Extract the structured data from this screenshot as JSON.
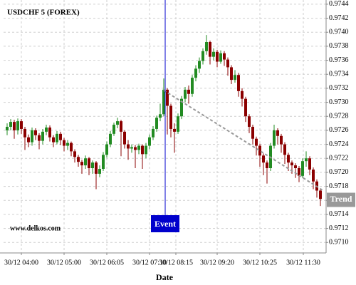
{
  "chart_data": {
    "type": "candlestick",
    "title": "USDCHF 5 (FOREX)",
    "watermark": "www.delkos.com",
    "x_label": "Date",
    "up_color": "#228b22",
    "down_color": "#8b0000",
    "grid": true,
    "xlim": [
      -1,
      89.6
    ],
    "ylim": [
      0.97085,
      0.97446
    ],
    "xticks": [
      {
        "value": 4,
        "label": "30/12 04:00"
      },
      {
        "value": 16,
        "label": "30/12 05:00"
      },
      {
        "value": 28,
        "label": "30/12 06:05"
      },
      {
        "value": 40,
        "label": "30/12 07:10"
      },
      {
        "value": 47.4,
        "label": "30/12 08:15"
      },
      {
        "value": 59,
        "label": "30/12 09:20"
      },
      {
        "value": 71,
        "label": "30/12 10:25"
      },
      {
        "value": 83.2,
        "label": "30/12 11:30"
      }
    ],
    "yticks": [
      {
        "value": 0.971,
        "label": "0.9710"
      },
      0.9712,
      0.9714,
      0.9716,
      0.9718,
      {
        "value": 0.972,
        "label": "0.9720"
      },
      0.9722,
      0.9724,
      0.9726,
      0.9728,
      {
        "value": 0.973,
        "label": "0.9730"
      },
      0.9732,
      0.9734,
      0.9736,
      0.9738,
      {
        "value": 0.974,
        "label": "0.9740"
      },
      0.9742,
      0.9744
    ],
    "open": [
      0.9726,
      0.97265,
      0.97272,
      0.9726,
      0.97273,
      0.97262,
      0.9725,
      0.97243,
      0.9726,
      0.97253,
      0.97245,
      0.97258,
      0.97264,
      0.9725,
      0.97243,
      0.97255,
      0.97246,
      0.97238,
      0.97242,
      0.9723,
      0.97222,
      0.97215,
      0.9721,
      0.9722,
      0.97206,
      0.97214,
      0.97198,
      0.97205,
      0.97225,
      0.9724,
      0.97255,
      0.97268,
      0.97273,
      0.97258,
      0.9724,
      0.97234,
      0.97236,
      0.97232,
      0.97238,
      0.97226,
      0.97238,
      0.9725,
      0.97262,
      0.97278,
      0.97283,
      0.97318,
      0.97295,
      0.97262,
      0.97258,
      0.9728,
      0.97305,
      0.97318,
      0.97312,
      0.97335,
      0.97348,
      0.97359,
      0.97373,
      0.97386,
      0.97365,
      0.97372,
      0.97358,
      0.9737,
      0.97361,
      0.9735,
      0.97332,
      0.97339,
      0.97316,
      0.97305,
      0.9728,
      0.97265,
      0.97248,
      0.97238,
      0.97224,
      0.97214,
      0.97206,
      0.97238,
      0.9726,
      0.97252,
      0.9724,
      0.97225,
      0.97214,
      0.9721,
      0.97206,
      0.97195,
      0.97216,
      0.9722,
      0.97204,
      0.97187,
      0.97174
    ],
    "high": [
      0.9727,
      0.97276,
      0.97275,
      0.97277,
      0.97276,
      0.97265,
      0.97254,
      0.97264,
      0.97263,
      0.97256,
      0.97262,
      0.97268,
      0.97267,
      0.97253,
      0.97259,
      0.97258,
      0.97249,
      0.97246,
      0.97244,
      0.97233,
      0.97225,
      0.97218,
      0.97224,
      0.97222,
      0.97217,
      0.97216,
      0.9721,
      0.97229,
      0.97244,
      0.97259,
      0.97271,
      0.97278,
      0.97275,
      0.9726,
      0.97246,
      0.9724,
      0.97239,
      0.97241,
      0.9724,
      0.97242,
      0.97254,
      0.97266,
      0.97281,
      0.97298,
      0.97334,
      0.9732,
      0.97298,
      0.9727,
      0.97284,
      0.97309,
      0.97322,
      0.97324,
      0.97339,
      0.97353,
      0.97364,
      0.97377,
      0.97396,
      0.97388,
      0.97377,
      0.97375,
      0.97374,
      0.97373,
      0.97364,
      0.97353,
      0.97346,
      0.97342,
      0.9732,
      0.97308,
      0.97283,
      0.97268,
      0.97251,
      0.97241,
      0.97227,
      0.97217,
      0.97242,
      0.97268,
      0.97263,
      0.97255,
      0.97243,
      0.97228,
      0.97217,
      0.97213,
      0.97209,
      0.9722,
      0.9723,
      0.97223,
      0.97207,
      0.9719,
      0.97177
    ],
    "low": [
      0.97253,
      0.9726,
      0.97248,
      0.97254,
      0.97255,
      0.97232,
      0.97236,
      0.97238,
      0.97246,
      0.97233,
      0.9724,
      0.97253,
      0.97244,
      0.97236,
      0.9724,
      0.97239,
      0.9723,
      0.97232,
      0.97223,
      0.97214,
      0.97208,
      0.97198,
      0.97205,
      0.97196,
      0.97198,
      0.97176,
      0.97193,
      0.97202,
      0.97221,
      0.97236,
      0.97252,
      0.97263,
      0.97223,
      0.97234,
      0.97218,
      0.97228,
      0.97206,
      0.97226,
      0.97205,
      0.9722,
      0.97233,
      0.97246,
      0.97258,
      0.97273,
      0.9728,
      0.97254,
      0.9725,
      0.97228,
      0.97255,
      0.97276,
      0.973,
      0.97298,
      0.97308,
      0.9733,
      0.97342,
      0.97354,
      0.97368,
      0.97354,
      0.9736,
      0.9735,
      0.97355,
      0.97352,
      0.97338,
      0.97326,
      0.97328,
      0.97308,
      0.97294,
      0.97272,
      0.97256,
      0.9724,
      0.97224,
      0.97208,
      0.97196,
      0.97184,
      0.97202,
      0.97234,
      0.9724,
      0.97228,
      0.97212,
      0.97202,
      0.97198,
      0.97192,
      0.97186,
      0.97192,
      0.97208,
      0.97196,
      0.97176,
      0.97164,
      0.97152
    ],
    "close": [
      0.97265,
      0.97272,
      0.9726,
      0.97273,
      0.97262,
      0.9725,
      0.97243,
      0.9726,
      0.97253,
      0.97245,
      0.97258,
      0.97264,
      0.9725,
      0.97243,
      0.97255,
      0.97246,
      0.97238,
      0.97242,
      0.9723,
      0.97222,
      0.97215,
      0.9721,
      0.9722,
      0.97206,
      0.97214,
      0.97198,
      0.97205,
      0.97225,
      0.9724,
      0.97255,
      0.97268,
      0.97273,
      0.97258,
      0.9724,
      0.97234,
      0.97236,
      0.97232,
      0.97238,
      0.97226,
      0.97238,
      0.9725,
      0.97262,
      0.97278,
      0.97283,
      0.97318,
      0.97295,
      0.97262,
      0.97258,
      0.9728,
      0.97305,
      0.97318,
      0.97312,
      0.97335,
      0.97348,
      0.97359,
      0.97373,
      0.97386,
      0.97365,
      0.97372,
      0.97358,
      0.9737,
      0.97361,
      0.9735,
      0.97332,
      0.97339,
      0.97316,
      0.97305,
      0.9728,
      0.97265,
      0.97248,
      0.97238,
      0.97224,
      0.97214,
      0.97206,
      0.97238,
      0.9726,
      0.97252,
      0.9724,
      0.97225,
      0.97214,
      0.9721,
      0.97206,
      0.97195,
      0.97216,
      0.9722,
      0.97204,
      0.97187,
      0.97174,
      0.97162
    ],
    "event": {
      "label": "Event",
      "x": 44.4,
      "color": "#0000cc"
    },
    "trend": {
      "label": "Trend",
      "x": [
        44,
        88.5
      ],
      "y": [
        0.97317,
        0.97175
      ],
      "color": "#999999"
    }
  }
}
